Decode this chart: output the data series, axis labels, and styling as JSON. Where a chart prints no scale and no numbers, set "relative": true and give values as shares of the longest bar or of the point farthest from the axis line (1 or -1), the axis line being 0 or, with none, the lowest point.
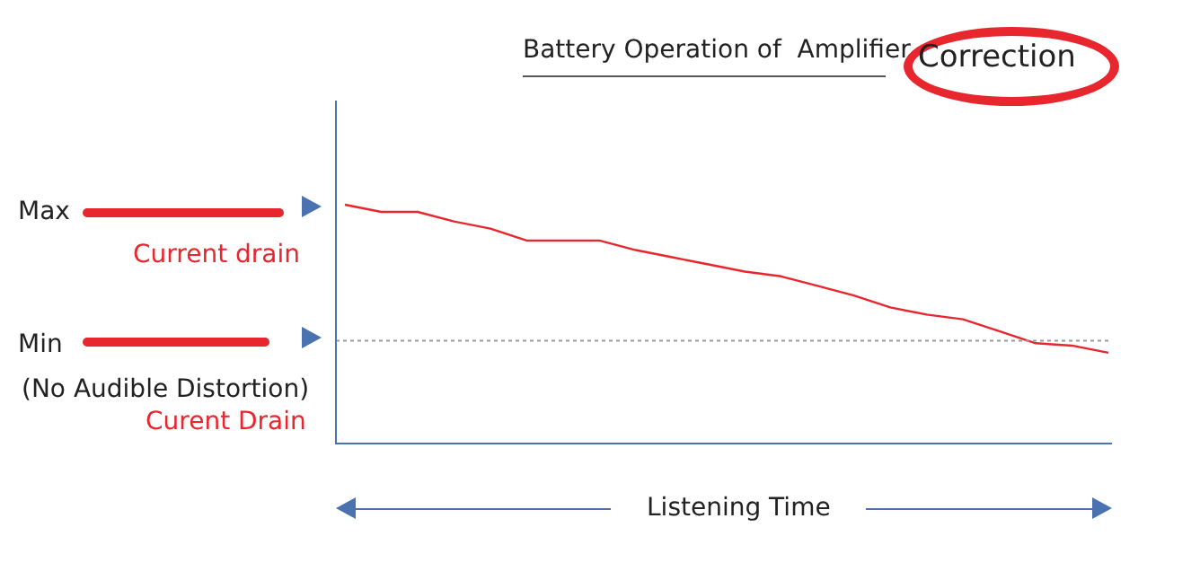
{
  "chart_data": {
    "type": "line",
    "title": "Battery Operation of  Amplifier",
    "xlabel": "Listening Time",
    "relative": true,
    "categories": [
      null,
      null,
      null,
      null,
      null,
      null,
      null,
      null,
      null,
      null,
      null,
      null,
      null,
      null,
      null,
      null,
      null,
      null,
      null,
      null,
      null,
      null
    ],
    "series": [
      {
        "color": "#e8262e",
        "values": [
          1.0,
          0.97,
          0.97,
          0.93,
          0.9,
          0.85,
          0.85,
          0.85,
          0.81,
          0.78,
          0.75,
          0.72,
          0.7,
          0.66,
          0.62,
          0.57,
          0.54,
          0.52,
          0.47,
          0.42,
          0.41,
          0.38
        ]
      }
    ],
    "ref_lines": [
      {
        "axis": "y",
        "value": 0.43,
        "color": "#999999",
        "line_style": "dotted"
      }
    ],
    "annotations": [
      "Correction",
      "Max",
      "Current drain",
      "Min",
      "(No Audible Distortion)",
      "Curent Drain"
    ],
    "legend": false,
    "marker": "none",
    "line_style": "solid"
  }
}
